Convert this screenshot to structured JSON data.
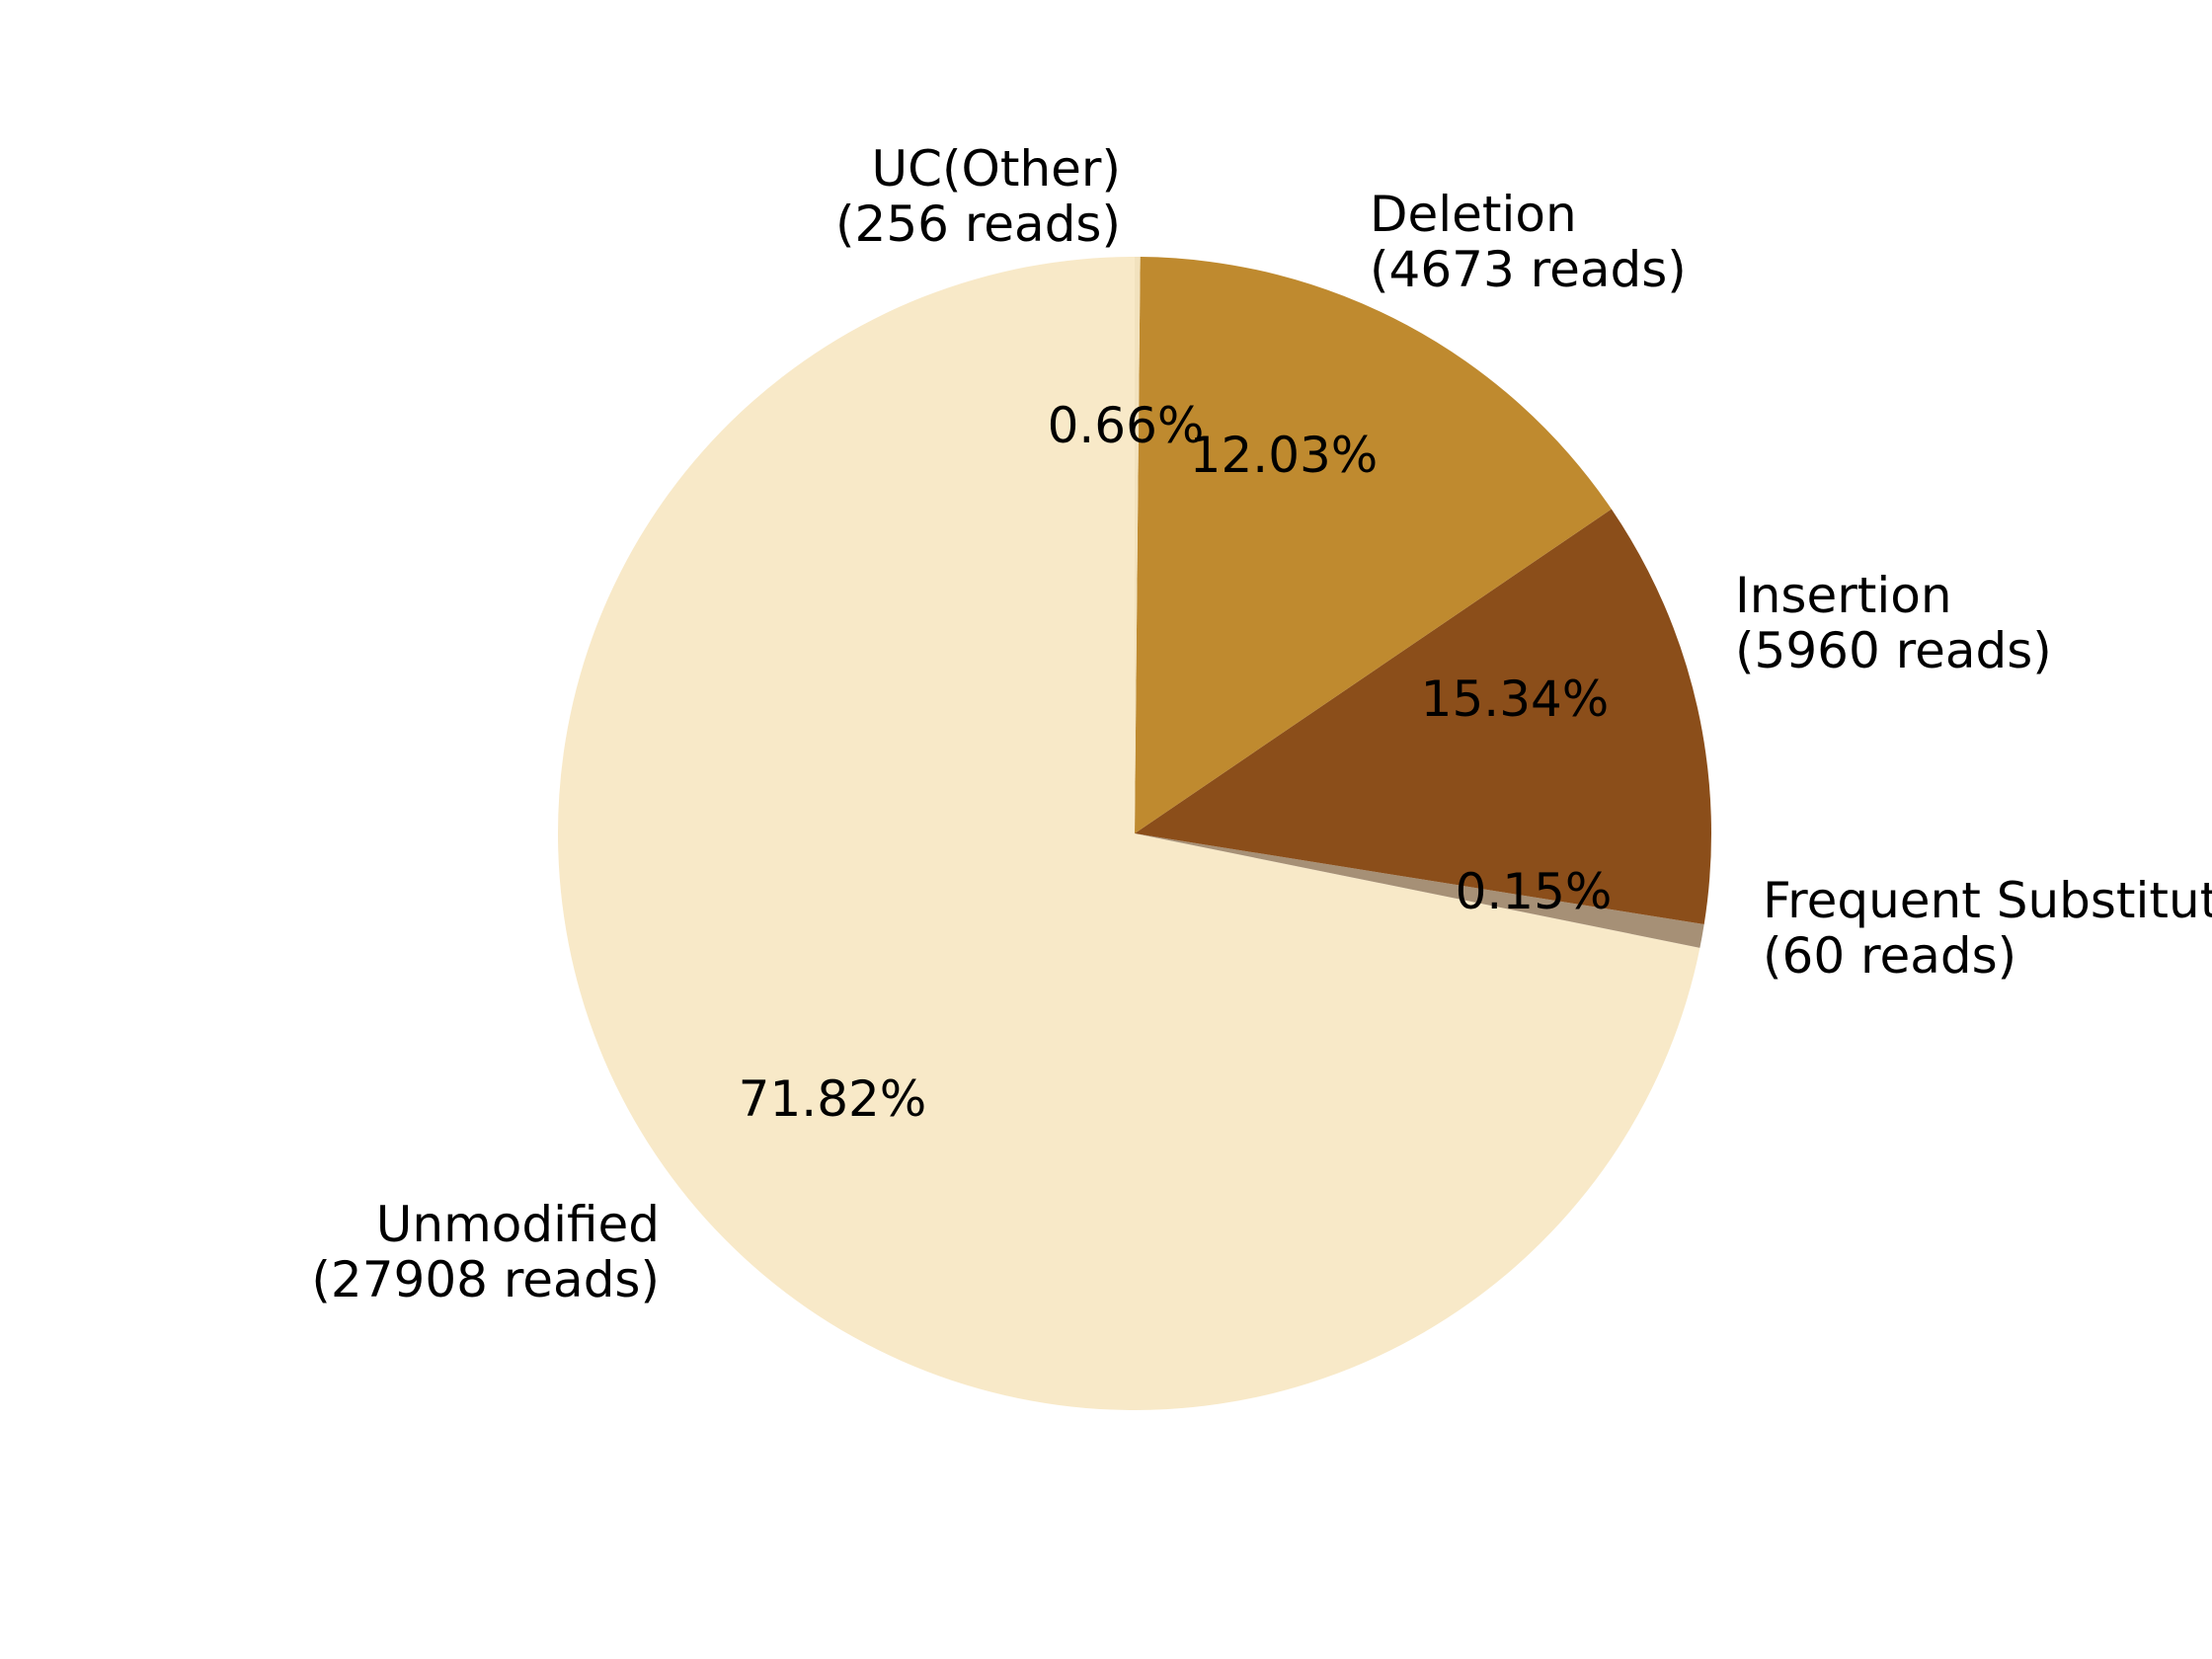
{
  "chart_data": {
    "type": "pie",
    "title": "",
    "slices": [
      {
        "label": "Unmodified",
        "reads": "(27908 reads)",
        "value": 27908,
        "percent_label": "71.82%",
        "color": "#F8E9C8"
      },
      {
        "label": "UC(Other)",
        "reads": "(256 reads)",
        "value": 256,
        "percent_label": "0.66%",
        "color": "#A69076"
      },
      {
        "label": "Deletion",
        "reads": "(4673 reads)",
        "value": 4673,
        "percent_label": "12.03%",
        "color": "#8B4E1A"
      },
      {
        "label": "Insertion",
        "reads": "(5960 reads)",
        "value": 5960,
        "percent_label": "15.34%",
        "color": "#BF8A2F"
      },
      {
        "label": "Frequent Substitution",
        "reads": "(60 reads)",
        "value": 60,
        "percent_label": "0.15%",
        "color": "#F2E2BE"
      }
    ],
    "start_angle_deg": 90,
    "direction": "clockwise",
    "legend": "none"
  }
}
